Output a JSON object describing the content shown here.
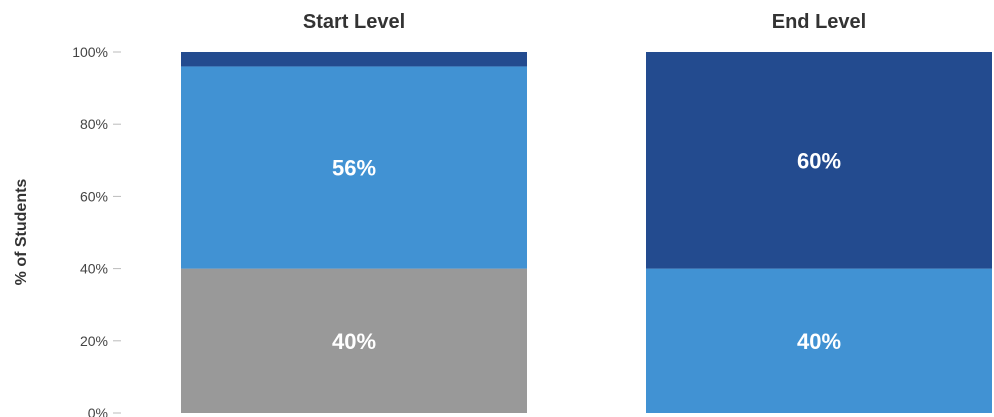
{
  "chart_data": {
    "type": "bar",
    "stacked": true,
    "ylabel": "% of Students",
    "ylim": [
      0,
      100
    ],
    "yticks": [
      "0%",
      "20%",
      "40%",
      "60%",
      "80%",
      "100%"
    ],
    "ytick_values": [
      0,
      20,
      40,
      60,
      80,
      100
    ],
    "grid": false,
    "legend": "none",
    "panels": [
      {
        "title": "Start Level",
        "segments": [
          {
            "value": 40,
            "label": "40%",
            "color": "#999999"
          },
          {
            "value": 56,
            "label": "56%",
            "color": "#4192d3"
          },
          {
            "value": 4,
            "label": "",
            "color": "#234b8f"
          }
        ]
      },
      {
        "title": "End Level",
        "segments": [
          {
            "value": 40,
            "label": "40%",
            "color": "#4192d3"
          },
          {
            "value": 60,
            "label": "60%",
            "color": "#234b8f"
          }
        ]
      }
    ]
  }
}
